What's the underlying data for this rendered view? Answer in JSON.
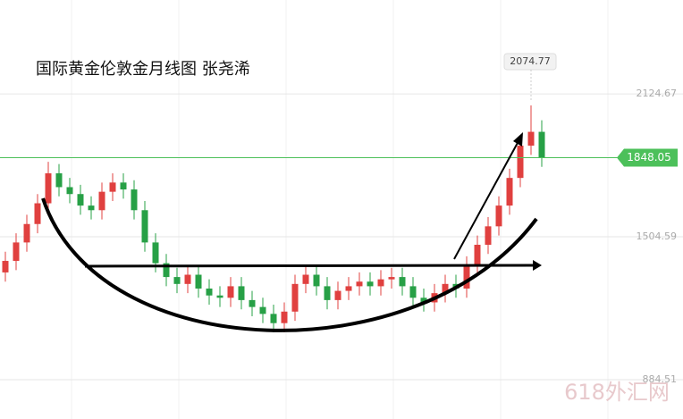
{
  "chart_data": {
    "type": "candlestick",
    "title": "国际黄金伦敦金月线图 张尧浠",
    "watermark": "618外汇网",
    "ylim": [
      714,
      2532
    ],
    "yticks": [
      884.51,
      1504.59,
      2124.67
    ],
    "grid": true,
    "up_color": "#e0403f",
    "down_color": "#27a046",
    "current_price": 1848.05,
    "price_color": "#4cc05a",
    "open": [
      1350,
      1400,
      1480,
      1560,
      1650,
      1780,
      1720,
      1690,
      1640,
      1620,
      1700,
      1740,
      1710,
      1620,
      1480,
      1390,
      1330,
      1300,
      1340,
      1280,
      1250,
      1240,
      1290,
      1230,
      1200,
      1170,
      1130,
      1180,
      1300,
      1340,
      1290,
      1230,
      1270,
      1290,
      1310,
      1290,
      1320,
      1330,
      1290,
      1240,
      1220,
      1260,
      1300,
      1280,
      1380,
      1470,
      1550,
      1640,
      1760,
      1900,
      1960
    ],
    "high": [
      1440,
      1520,
      1600,
      1690,
      1830,
      1820,
      1760,
      1730,
      1680,
      1740,
      1780,
      1780,
      1750,
      1660,
      1520,
      1430,
      1370,
      1380,
      1380,
      1320,
      1290,
      1330,
      1330,
      1270,
      1240,
      1210,
      1220,
      1340,
      1380,
      1380,
      1330,
      1310,
      1330,
      1350,
      1350,
      1360,
      1370,
      1370,
      1330,
      1280,
      1300,
      1340,
      1340,
      1420,
      1510,
      1590,
      1680,
      1800,
      1940,
      2074.77,
      2010
    ],
    "low": [
      1310,
      1360,
      1440,
      1520,
      1610,
      1680,
      1650,
      1600,
      1580,
      1580,
      1660,
      1670,
      1580,
      1440,
      1350,
      1290,
      1260,
      1260,
      1240,
      1210,
      1200,
      1200,
      1190,
      1160,
      1130,
      1090,
      1090,
      1140,
      1260,
      1250,
      1190,
      1190,
      1230,
      1250,
      1250,
      1250,
      1280,
      1250,
      1200,
      1180,
      1180,
      1220,
      1240,
      1240,
      1340,
      1430,
      1510,
      1600,
      1720,
      1860,
      1808
    ],
    "close": [
      1400,
      1480,
      1560,
      1650,
      1780,
      1720,
      1690,
      1640,
      1620,
      1700,
      1740,
      1710,
      1620,
      1480,
      1390,
      1330,
      1300,
      1340,
      1280,
      1250,
      1240,
      1290,
      1230,
      1200,
      1170,
      1130,
      1180,
      1300,
      1340,
      1290,
      1230,
      1270,
      1290,
      1310,
      1290,
      1320,
      1330,
      1290,
      1240,
      1220,
      1260,
      1300,
      1280,
      1380,
      1470,
      1550,
      1640,
      1760,
      1900,
      1960,
      1848.05
    ]
  }
}
